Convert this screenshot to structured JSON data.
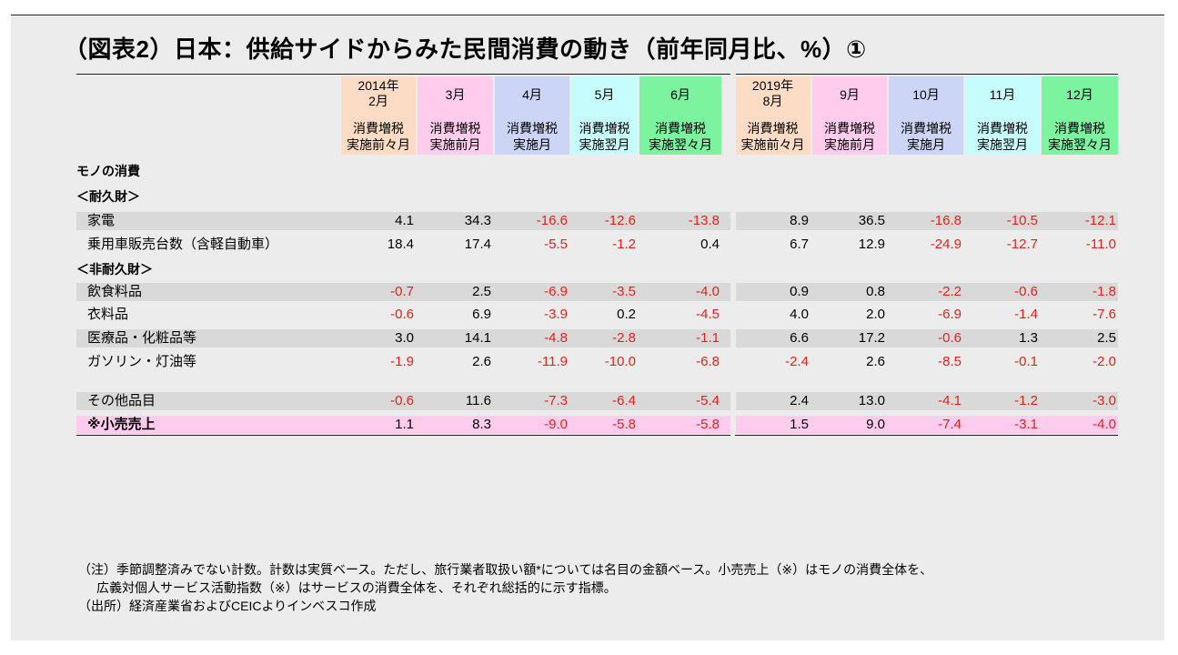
{
  "title": "（図表2）日本：供給サイドからみた民間消費の動き（前年同月比、%）①",
  "colors": {
    "col1": "#fcdcc4",
    "col2": "#ffccee",
    "col3": "#cdd5f7",
    "col4": "#c7fcfc",
    "col5": "#7cf39f",
    "row_band": "#d9d9d9",
    "row_highlight": "#ffccee",
    "negative": "#e0241c"
  },
  "columns": [
    {
      "period": "2014年\n2月",
      "sub": "消費増税\n実施前々月"
    },
    {
      "period": "3月",
      "sub": "消費増税\n実施前月"
    },
    {
      "period": "4月",
      "sub": "消費増税\n実施月"
    },
    {
      "period": "5月",
      "sub": "消費増税\n実施翌月"
    },
    {
      "period": "6月",
      "sub": "消費増税\n実施翌々月"
    },
    {
      "period": "2019年\n8月",
      "sub": "消費増税\n実施前々月"
    },
    {
      "period": "9月",
      "sub": "消費増税\n実施前月"
    },
    {
      "period": "10月",
      "sub": "消費増税\n実施月"
    },
    {
      "period": "11月",
      "sub": "消費増税\n実施翌月"
    },
    {
      "period": "12月",
      "sub": "消費増税\n実施翌々月"
    }
  ],
  "sections": {
    "goods": "モノの消費",
    "durable": "＜耐久財＞",
    "nondurable": "＜非耐久財＞"
  },
  "rows": [
    {
      "label": "家電",
      "values": [
        "4.1",
        "34.3",
        "-16.6",
        "-12.6",
        "-13.8",
        "8.9",
        "36.5",
        "-16.8",
        "-10.5",
        "-12.1"
      ]
    },
    {
      "label": "乗用車販売台数（含軽自動車）",
      "values": [
        "18.4",
        "17.4",
        "-5.5",
        "-1.2",
        "0.4",
        "6.7",
        "12.9",
        "-24.9",
        "-12.7",
        "-11.0"
      ]
    },
    {
      "label": "飲食料品",
      "values": [
        "-0.7",
        "2.5",
        "-6.9",
        "-3.5",
        "-4.0",
        "0.9",
        "0.8",
        "-2.2",
        "-0.6",
        "-1.8"
      ]
    },
    {
      "label": "衣料品",
      "values": [
        "-0.6",
        "6.9",
        "-3.9",
        "0.2",
        "-4.5",
        "4.0",
        "2.0",
        "-6.9",
        "-1.4",
        "-7.6"
      ]
    },
    {
      "label": "医療品・化粧品等",
      "values": [
        "3.0",
        "14.1",
        "-4.8",
        "-2.8",
        "-1.1",
        "6.6",
        "17.2",
        "-0.6",
        "1.3",
        "2.5"
      ]
    },
    {
      "label": "ガソリン・灯油等",
      "values": [
        "-1.9",
        "2.6",
        "-11.9",
        "-10.0",
        "-6.8",
        "-2.4",
        "2.6",
        "-8.5",
        "-0.1",
        "-2.0"
      ]
    },
    {
      "label": "その他品目",
      "values": [
        "-0.6",
        "11.6",
        "-7.3",
        "-6.4",
        "-5.4",
        "2.4",
        "13.0",
        "-4.1",
        "-1.2",
        "-3.0"
      ]
    },
    {
      "label": "※小売売上",
      "values": [
        "1.1",
        "8.3",
        "-9.0",
        "-5.8",
        "-5.8",
        "1.5",
        "9.0",
        "-7.4",
        "-3.1",
        "-4.0"
      ]
    }
  ],
  "notes": [
    "（注）季節調整済みでない計数。計数は実質ベース。ただし、旅行業者取扱い額*については名目の金額ベース。小売売上（※）はモノの消費全体を、",
    "広義対個人サービス活動指数（※）はサービスの消費全体を、それぞれ総括的に示す指標。",
    "（出所）経済産業省およびCEICよりインベスコ作成"
  ]
}
